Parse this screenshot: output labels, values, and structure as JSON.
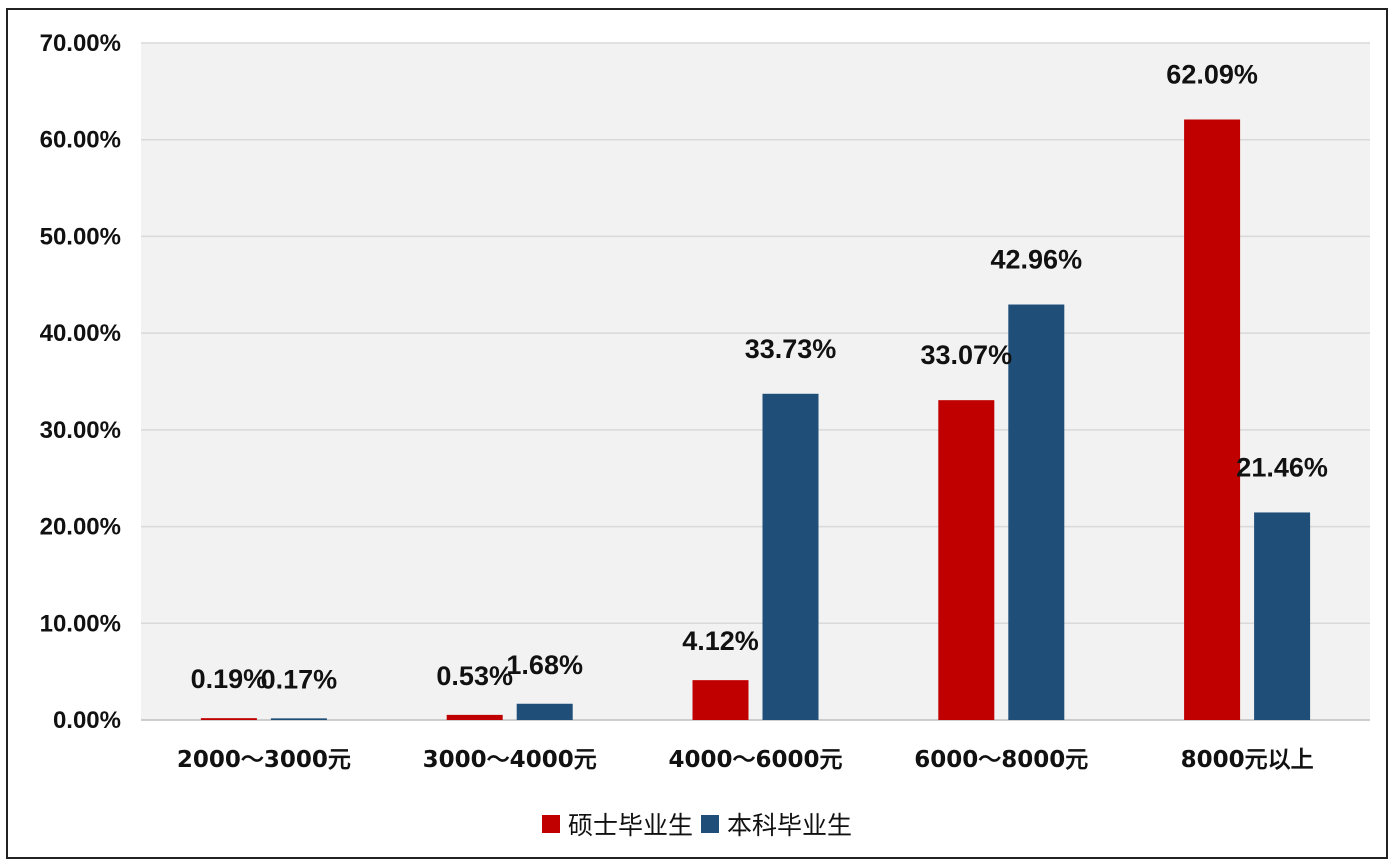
{
  "chart_data": {
    "type": "bar",
    "categories": [
      "2000～3000元",
      "3000～4000元",
      "4000～6000元",
      "6000～8000元",
      "8000元以上"
    ],
    "series": [
      {
        "name": "硕士毕业生",
        "color": "#C00000",
        "values": [
          0.19,
          0.53,
          4.12,
          33.07,
          62.09
        ],
        "labels": [
          "0.19%",
          "0.53%",
          "4.12%",
          "33.07%",
          "62.09%"
        ]
      },
      {
        "name": "本科毕业生",
        "color": "#1F4E79",
        "values": [
          0.17,
          1.68,
          33.73,
          42.96,
          21.46
        ],
        "labels": [
          "0.17%",
          "1.68%",
          "33.73%",
          "42.96%",
          "21.46%"
        ]
      }
    ],
    "ylim": [
      0,
      70
    ],
    "yticks": [
      "0.00%",
      "10.00%",
      "20.00%",
      "30.00%",
      "40.00%",
      "50.00%",
      "60.00%",
      "70.00%"
    ],
    "grid": true,
    "plot_background": "#F2F2F2",
    "legend_position": "bottom",
    "title": "",
    "xlabel": "",
    "ylabel": ""
  }
}
